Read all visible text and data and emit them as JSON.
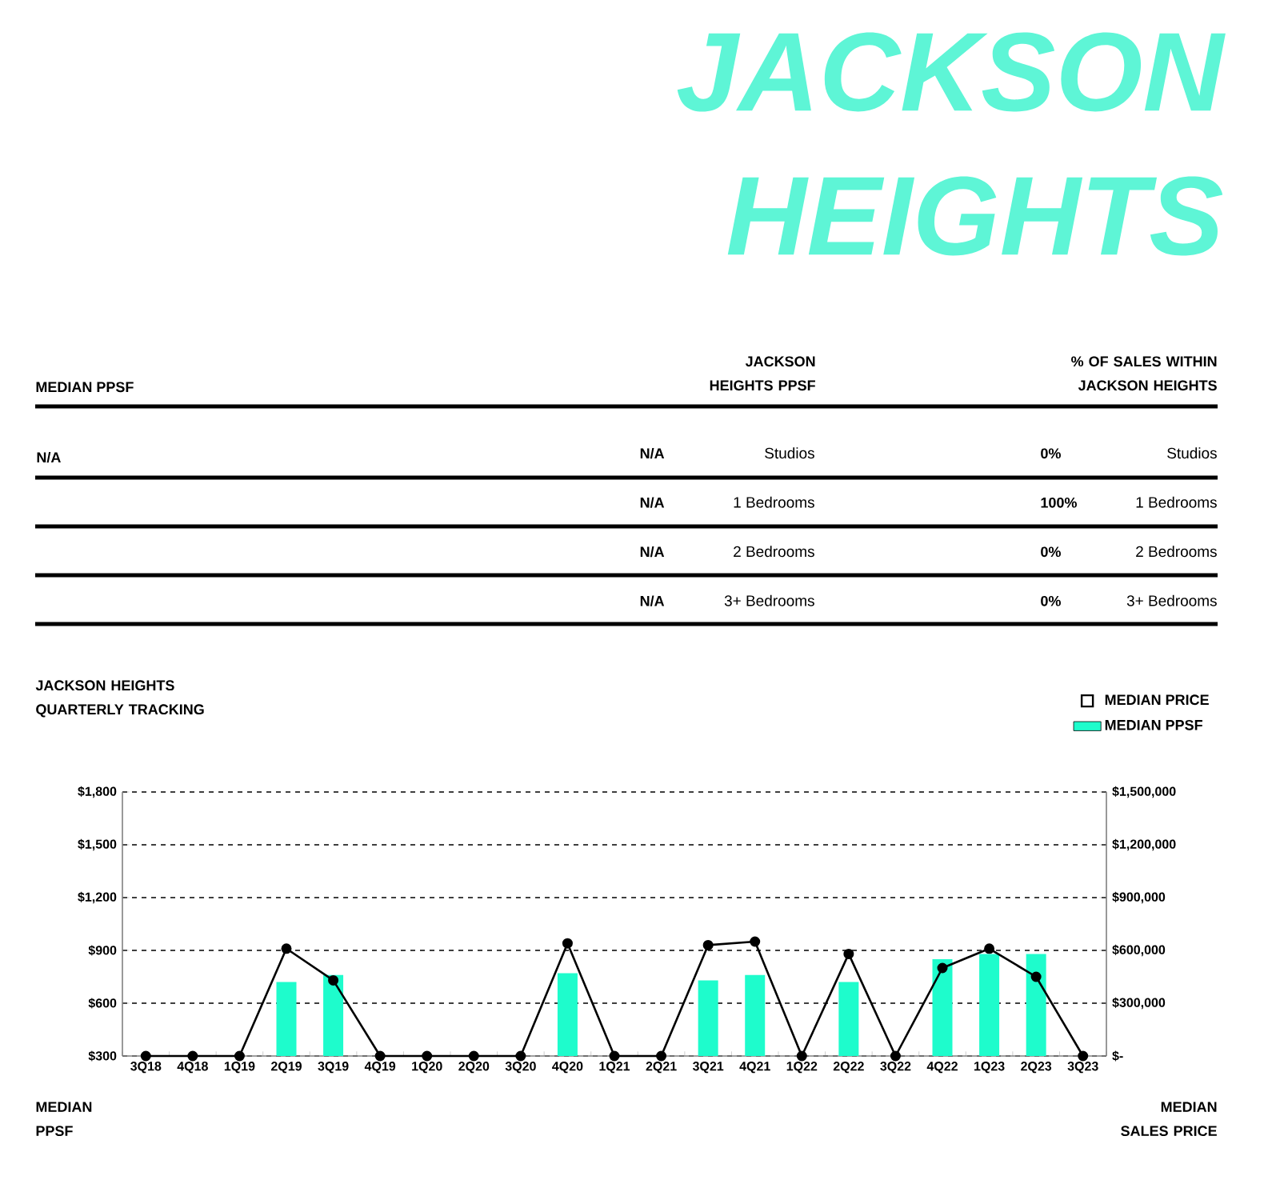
{
  "chart_data": [
    {
      "type": "other",
      "title": "JACKSON HEIGHTS",
      "annotations": [
        "MEDIAN PPSF",
        "N/A",
        "JACKSON HEIGHTS PPSF",
        "% OF SALES WITHIN JACKSON HEIGHTS",
        "N/A",
        "Studios",
        "0%",
        "Studios",
        "N/A",
        "1 Bedrooms",
        "100%",
        "1 Bedrooms",
        "N/A",
        "2 Bedrooms",
        "0%",
        "2 Bedrooms",
        "N/A",
        "3+ Bedrooms",
        "0%",
        "3+ Bedrooms"
      ]
    },
    {
      "type": "bar",
      "title": "JACKSON HEIGHTS QUARTERLY TRACKING",
      "ylabel": "MEDIAN PPSF",
      "y2label": "MEDIAN SALES PRICE",
      "categories": [
        "3Q18",
        "4Q18",
        "1Q19",
        "2Q19",
        "3Q19",
        "4Q19",
        "1Q20",
        "2Q20",
        "3Q20",
        "4Q20",
        "1Q21",
        "2Q21",
        "3Q21",
        "4Q21",
        "1Q22",
        "2Q22",
        "3Q22",
        "4Q22",
        "1Q23",
        "2Q23",
        "3Q23"
      ],
      "series": [
        {
          "name": "MEDIAN PRICE",
          "type": "line",
          "axis": "y2",
          "color": "#000000",
          "marker": "circle",
          "values": [
            0,
            0,
            0,
            610000,
            430000,
            0,
            0,
            0,
            0,
            640000,
            0,
            0,
            630000,
            650000,
            0,
            580000,
            0,
            500000,
            610000,
            450000,
            0
          ]
        },
        {
          "name": "MEDIAN PPSF",
          "type": "bar",
          "color": "#1efccc",
          "values": [
            null,
            null,
            null,
            720,
            760,
            null,
            null,
            null,
            null,
            770,
            null,
            null,
            730,
            760,
            null,
            720,
            null,
            850,
            880,
            880,
            null
          ]
        }
      ],
      "ylim": [
        300,
        1800
      ],
      "yticks": [
        {
          "value": 300,
          "label": "$300"
        },
        {
          "value": 600,
          "label": "$600"
        },
        {
          "value": 900,
          "label": "$900"
        },
        {
          "value": 1200,
          "label": "$1,200"
        },
        {
          "value": 1500,
          "label": "$1,500"
        },
        {
          "value": 1800,
          "label": "$1,800"
        }
      ],
      "y2lim": [
        0,
        1500000
      ],
      "y2ticks": [
        {
          "value": 0,
          "label": "$-"
        },
        {
          "value": 300000,
          "label": "$300,000"
        },
        {
          "value": 600000,
          "label": "$600,000"
        },
        {
          "value": 900000,
          "label": "$900,000"
        },
        {
          "value": 1200000,
          "label": "$1,200,000"
        },
        {
          "value": 1500000,
          "label": "$1,500,000"
        }
      ],
      "grid": "y",
      "legend": "top right"
    }
  ]
}
